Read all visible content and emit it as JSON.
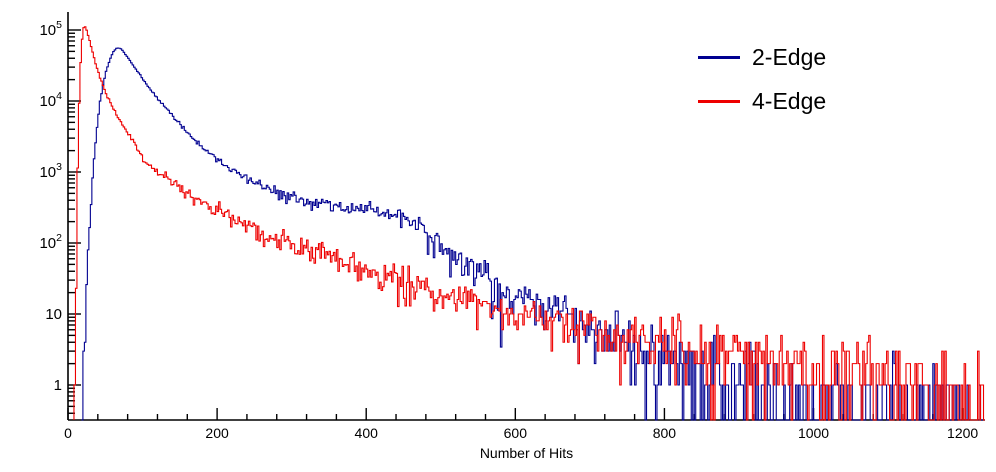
{
  "chart_data": {
    "type": "line",
    "subtype": "histogram-step",
    "title": "",
    "xlabel": "Number of Hits",
    "ylabel": "",
    "grid": false,
    "x_axis": {
      "min": 0,
      "max": 1230,
      "major_ticks": [
        0,
        200,
        400,
        600,
        800,
        1000,
        1200
      ],
      "minor_tick_step": 40
    },
    "y_axis": {
      "scale": "log",
      "min": 0.32,
      "max": 180000,
      "major_tick_exponents": [
        0,
        1,
        2,
        3,
        4,
        5
      ],
      "major_tick_labels": [
        "1",
        "10",
        "10^2",
        "10^3",
        "10^4",
        "10^5"
      ]
    },
    "legend": {
      "position": "top-right",
      "entries": [
        {
          "label": "2-Edge",
          "color": "#000090"
        },
        {
          "label": "4-Edge",
          "color": "#ee0000"
        }
      ]
    },
    "series": [
      {
        "name": "2-Edge",
        "color": "#000090",
        "bin_width": 2,
        "anchors": [
          [
            18,
            0.8
          ],
          [
            22,
            6
          ],
          [
            26,
            60
          ],
          [
            30,
            350
          ],
          [
            34,
            1500
          ],
          [
            38,
            4500
          ],
          [
            42,
            10000
          ],
          [
            46,
            17000
          ],
          [
            50,
            26000
          ],
          [
            55,
            38000
          ],
          [
            60,
            50000
          ],
          [
            65,
            56000
          ],
          [
            70,
            54000
          ],
          [
            75,
            47000
          ],
          [
            80,
            40000
          ],
          [
            90,
            28000
          ],
          [
            100,
            20000
          ],
          [
            110,
            14500
          ],
          [
            120,
            10500
          ],
          [
            135,
            7000
          ],
          [
            150,
            4600
          ],
          [
            165,
            3100
          ],
          [
            180,
            2200
          ],
          [
            200,
            1450
          ],
          [
            220,
            1050
          ],
          [
            240,
            800
          ],
          [
            260,
            640
          ],
          [
            280,
            520
          ],
          [
            300,
            440
          ],
          [
            320,
            385
          ],
          [
            340,
            345
          ],
          [
            360,
            315
          ],
          [
            380,
            300
          ],
          [
            400,
            290
          ],
          [
            415,
            285
          ],
          [
            430,
            260
          ],
          [
            445,
            225
          ],
          [
            460,
            195
          ],
          [
            475,
            160
          ],
          [
            490,
            115
          ],
          [
            505,
            80
          ],
          [
            520,
            58
          ],
          [
            535,
            45
          ],
          [
            550,
            36
          ],
          [
            565,
            30
          ],
          [
            580,
            25
          ],
          [
            600,
            20
          ],
          [
            620,
            16
          ],
          [
            640,
            13
          ],
          [
            660,
            10
          ],
          [
            680,
            8
          ],
          [
            700,
            6.5
          ],
          [
            720,
            5.2
          ],
          [
            740,
            4.2
          ],
          [
            760,
            3.4
          ],
          [
            780,
            2.8
          ],
          [
            800,
            2.3
          ],
          [
            830,
            1.8
          ],
          [
            860,
            1.4
          ],
          [
            900,
            1.0
          ],
          [
            950,
            0.7
          ],
          [
            1000,
            0.5
          ],
          [
            1080,
            0.38
          ],
          [
            1160,
            0.33
          ],
          [
            1230,
            0.3
          ]
        ]
      },
      {
        "name": "4-Edge",
        "color": "#ee0000",
        "bin_width": 2,
        "anchors": [
          [
            8,
            0.8
          ],
          [
            10,
            30
          ],
          [
            12,
            1200
          ],
          [
            14,
            9000
          ],
          [
            16,
            35000
          ],
          [
            18,
            75000
          ],
          [
            20,
            108000
          ],
          [
            22,
            112000
          ],
          [
            24,
            100000
          ],
          [
            27,
            78000
          ],
          [
            30,
            58000
          ],
          [
            34,
            40000
          ],
          [
            38,
            28500
          ],
          [
            42,
            21500
          ],
          [
            47,
            15500
          ],
          [
            52,
            11500
          ],
          [
            58,
            8400
          ],
          [
            65,
            6100
          ],
          [
            72,
            4600
          ],
          [
            80,
            3500
          ],
          [
            90,
            2400
          ],
          [
            100,
            1500
          ],
          [
            110,
            1200
          ],
          [
            120,
            980
          ],
          [
            135,
            780
          ],
          [
            150,
            600
          ],
          [
            165,
            470
          ],
          [
            180,
            370
          ],
          [
            200,
            280
          ],
          [
            220,
            220
          ],
          [
            240,
            175
          ],
          [
            260,
            140
          ],
          [
            280,
            115
          ],
          [
            300,
            95
          ],
          [
            320,
            80
          ],
          [
            340,
            67
          ],
          [
            360,
            57
          ],
          [
            380,
            48
          ],
          [
            400,
            41
          ],
          [
            425,
            34
          ],
          [
            450,
            28
          ],
          [
            475,
            24
          ],
          [
            500,
            20
          ],
          [
            530,
            16.5
          ],
          [
            560,
            14
          ],
          [
            590,
            11.5
          ],
          [
            620,
            9.8
          ],
          [
            650,
            8.4
          ],
          [
            680,
            7.2
          ],
          [
            710,
            6.2
          ],
          [
            740,
            5.4
          ],
          [
            770,
            4.7
          ],
          [
            800,
            4.1
          ],
          [
            840,
            3.5
          ],
          [
            880,
            3.0
          ],
          [
            920,
            2.6
          ],
          [
            960,
            2.2
          ],
          [
            1000,
            1.9
          ],
          [
            1040,
            1.6
          ],
          [
            1080,
            1.35
          ],
          [
            1120,
            1.1
          ],
          [
            1150,
            0.8
          ],
          [
            1180,
            0.5
          ],
          [
            1210,
            0.35
          ],
          [
            1230,
            0.3
          ]
        ]
      }
    ]
  }
}
